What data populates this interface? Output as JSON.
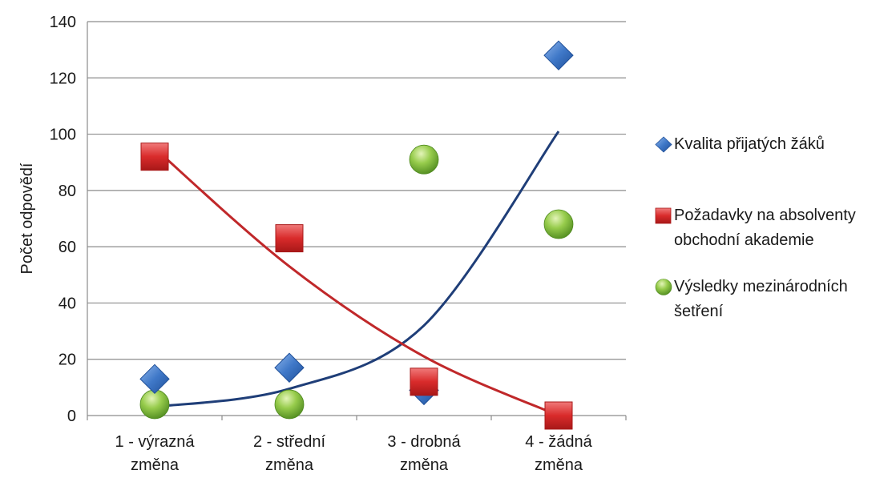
{
  "chart_data": {
    "type": "scatter",
    "title": "",
    "xlabel": "",
    "ylabel": "Počet odpovědí",
    "categories": [
      "1 - výrazná\nzměna",
      "2 - střední\nzměna",
      "3 - drobná\nzměna",
      "4 - žádná\nzměna"
    ],
    "ylim": [
      0,
      140
    ],
    "yticks": [
      0,
      20,
      40,
      60,
      80,
      100,
      120,
      140
    ],
    "grid": true,
    "legend_position": "right",
    "series": [
      {
        "name": "Kvalita přijatých žáků",
        "marker": "diamond",
        "color": "#2e68b8",
        "values": [
          13,
          17,
          9,
          128
        ]
      },
      {
        "name": "Požadavky na absolventy obchodní akademie",
        "marker": "square",
        "color": "#d02a2a",
        "values": [
          92,
          63,
          12,
          0
        ]
      },
      {
        "name": "Výsledky mezinárodních šetření",
        "marker": "circle",
        "color": "#7fbf3a",
        "values": [
          4,
          4,
          91,
          68
        ]
      }
    ],
    "trendlines": [
      {
        "series": "Kvalita přijatých žáků",
        "kind": "exponential",
        "color": "#1f3e78",
        "values": [
          3.1,
          9.5,
          32,
          101
        ]
      },
      {
        "series": "Požadavky na absolventy obchodní akademie",
        "kind": "polynomial",
        "color": "#c0282a",
        "values": [
          95,
          53,
          21,
          0
        ]
      }
    ]
  },
  "legend": {
    "items": [
      {
        "label": "Kvalita přijatých žáků",
        "marker": "diamond",
        "color": "#2e68b8"
      },
      {
        "label": "Požadavky na absolventy\nobchodní akademie",
        "marker": "square",
        "color": "#d02a2a"
      },
      {
        "label": "Výsledky mezinárodních\nšetření",
        "marker": "circle",
        "color": "#7fbf3a"
      }
    ]
  }
}
